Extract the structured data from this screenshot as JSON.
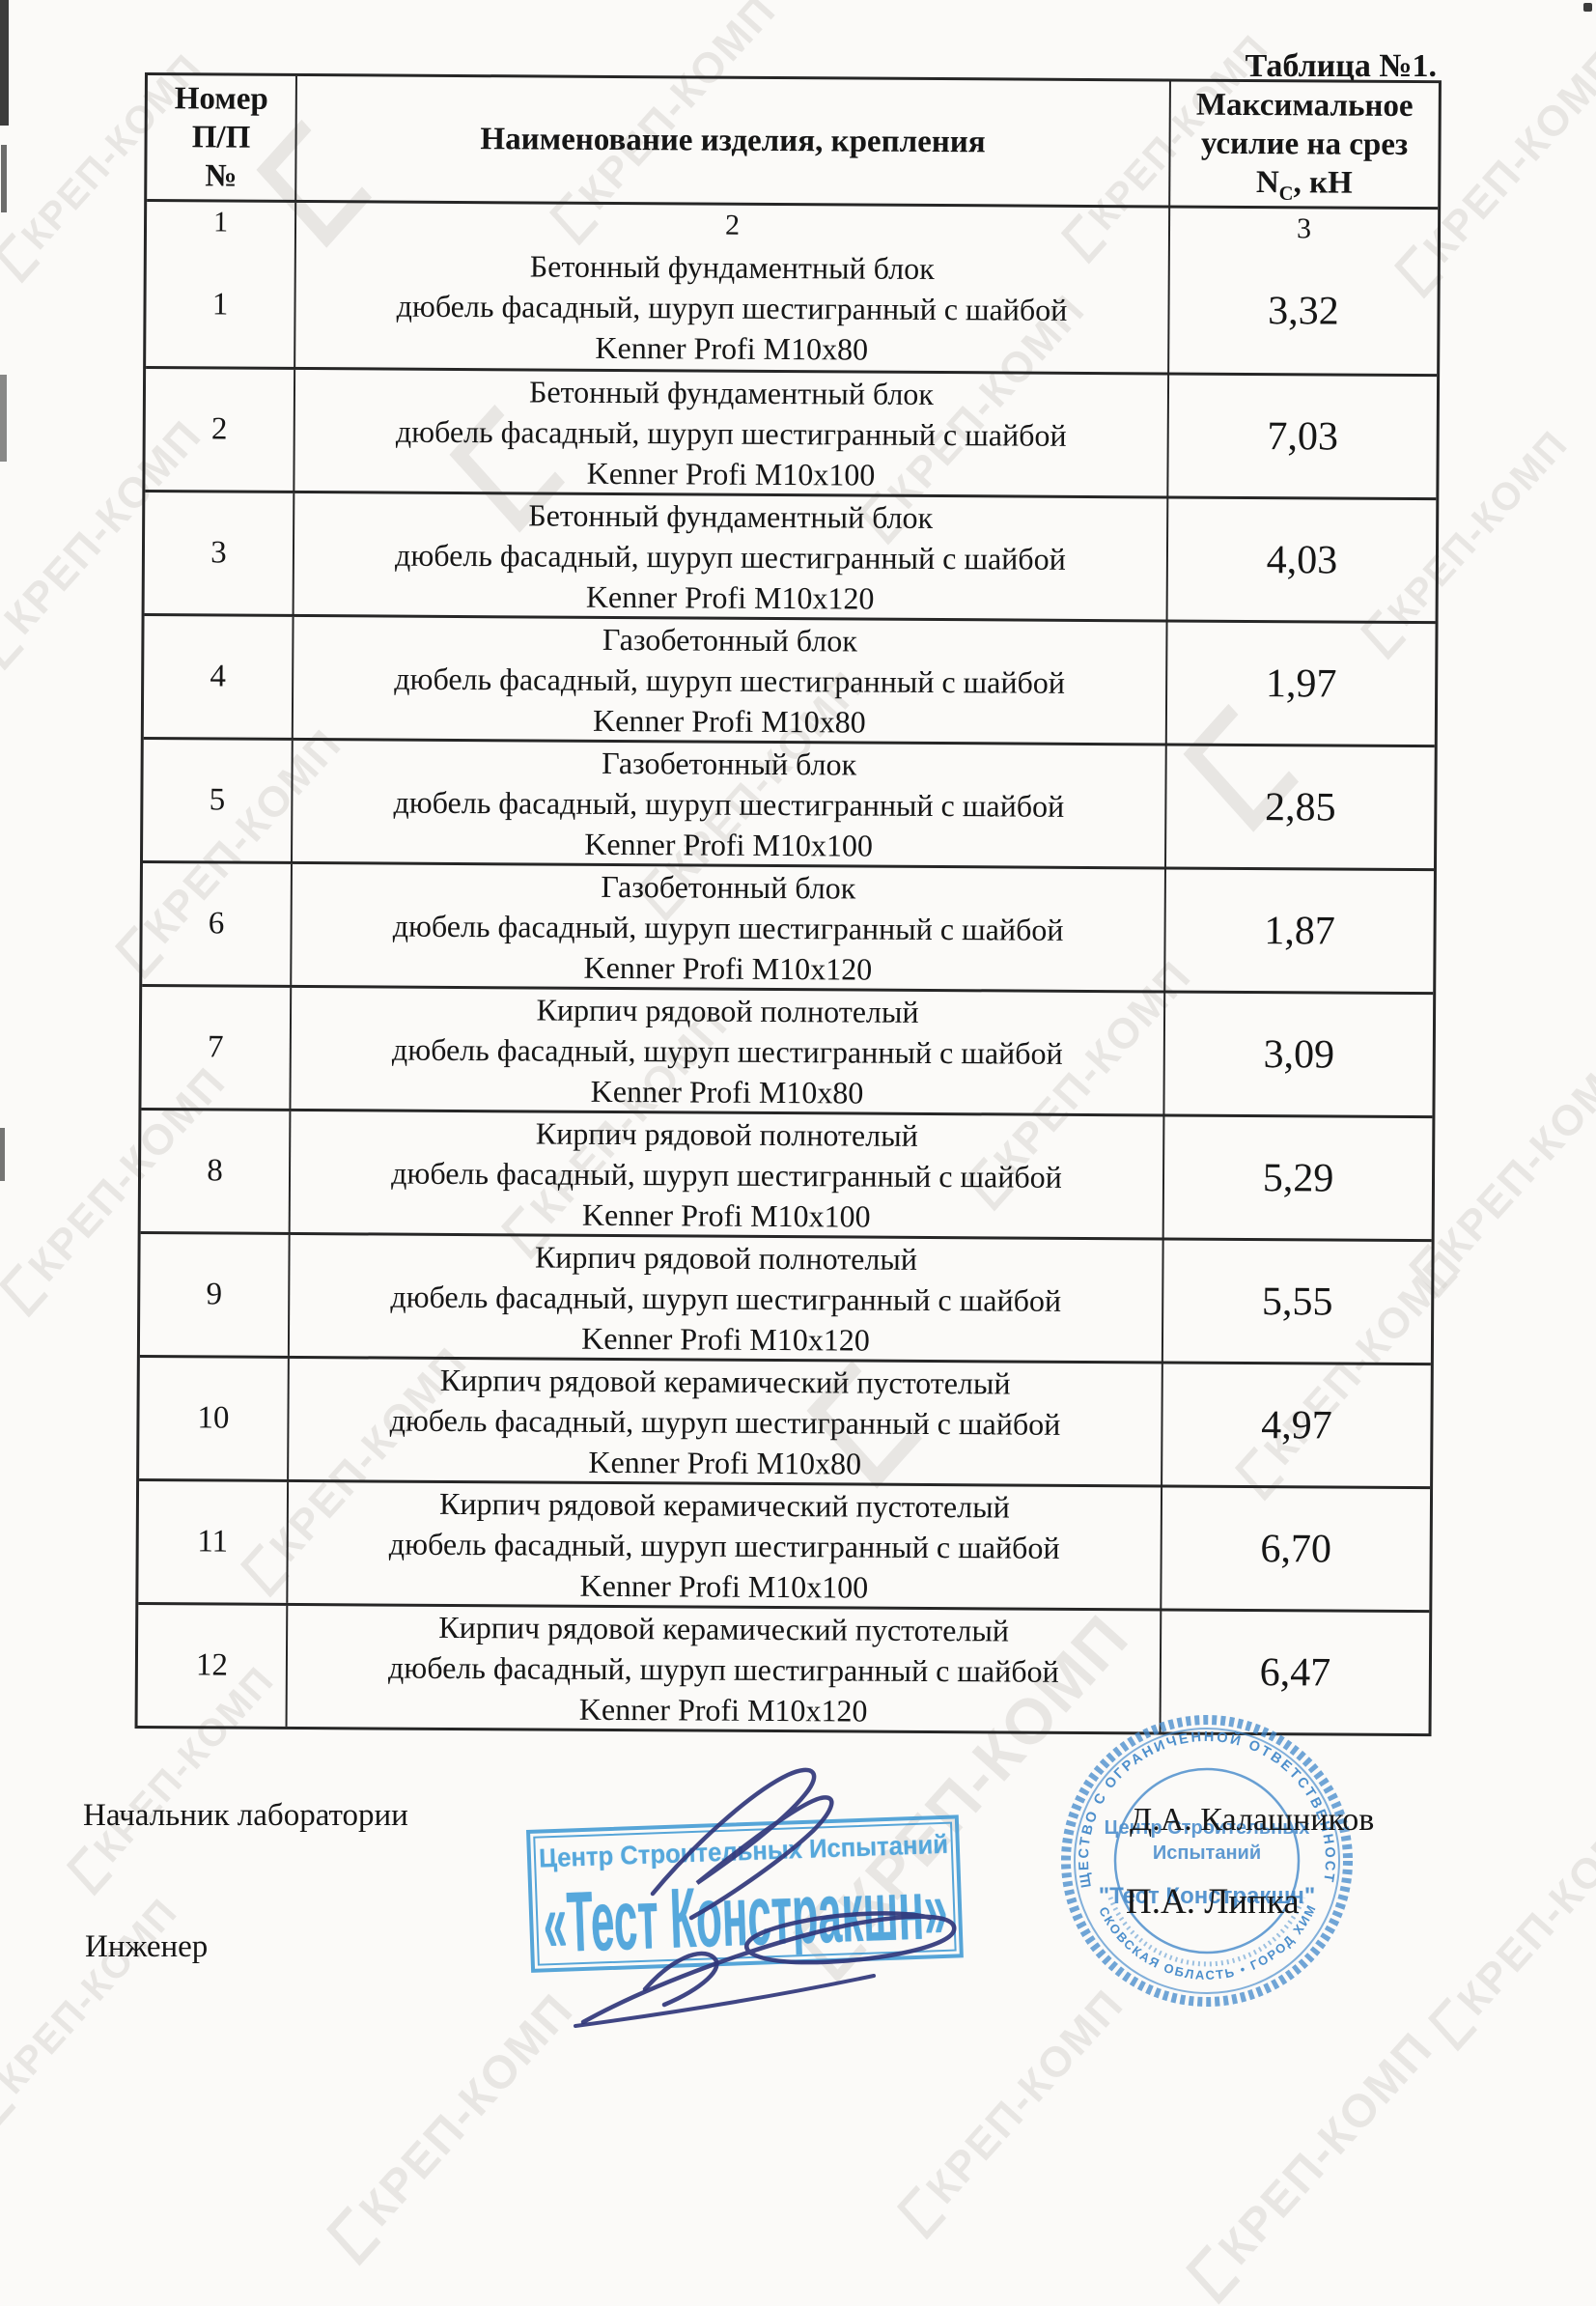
{
  "title": "Таблица №1.",
  "table": {
    "header": {
      "col1_lines": [
        "Номер",
        "П/П",
        "№"
      ],
      "col2": "Наименование изделия, крепления",
      "col3_line1": "Максимальное",
      "col3_line2": "усилие на срез",
      "col3_n": "N",
      "col3_sub": "С",
      "col3_unit": ", кН"
    },
    "numbering": {
      "c1": "1",
      "c2": "2",
      "c3": "3"
    },
    "rows": [
      {
        "num": "1",
        "material": "Бетонный фундаментный блок",
        "fastener": "дюбель фасадный, шуруп шестигранный с шайбой",
        "product": "Kenner Profi M10x80",
        "value": "3,32"
      },
      {
        "num": "2",
        "material": "Бетонный фундаментный блок",
        "fastener": "дюбель фасадный, шуруп шестигранный с шайбой",
        "product": "Kenner Profi M10x100",
        "value": "7,03"
      },
      {
        "num": "3",
        "material": "Бетонный фундаментный блок",
        "fastener": "дюбель фасадный, шуруп шестигранный с шайбой",
        "product": "Kenner Profi M10x120",
        "value": "4,03"
      },
      {
        "num": "4",
        "material": "Газобетонный блок",
        "fastener": "дюбель фасадный, шуруп шестигранный с шайбой",
        "product": "Kenner Profi M10x80",
        "value": "1,97"
      },
      {
        "num": "5",
        "material": "Газобетонный блок",
        "fastener": "дюбель фасадный, шуруп шестигранный с шайбой",
        "product": "Kenner Profi M10x100",
        "value": "2,85"
      },
      {
        "num": "6",
        "material": "Газобетонный блок",
        "fastener": "дюбель фасадный, шуруп шестигранный с шайбой",
        "product": "Kenner Profi M10x120",
        "value": "1,87"
      },
      {
        "num": "7",
        "material": "Кирпич рядовой полнотелый",
        "fastener": "дюбель фасадный, шуруп шестигранный с шайбой",
        "product": "Kenner Profi M10x80",
        "value": "3,09"
      },
      {
        "num": "8",
        "material": "Кирпич рядовой полнотелый",
        "fastener": "дюбель фасадный, шуруп шестигранный с шайбой",
        "product": "Kenner Profi M10x100",
        "value": "5,29"
      },
      {
        "num": "9",
        "material": "Кирпич рядовой полнотелый",
        "fastener": "дюбель фасадный, шуруп шестигранный с шайбой",
        "product": "Kenner Profi M10x120",
        "value": "5,55"
      },
      {
        "num": "10",
        "material": "Кирпич рядовой керамический пустотелый",
        "fastener": "дюбель фасадный, шуруп шестигранный с шайбой",
        "product": "Kenner Profi M10x80",
        "value": "4,97"
      },
      {
        "num": "11",
        "material": "Кирпич рядовой керамический пустотелый",
        "fastener": "дюбель фасадный, шуруп шестигранный с шайбой",
        "product": "Kenner Profi M10x100",
        "value": "6,70"
      },
      {
        "num": "12",
        "material": "Кирпич рядовой керамический пустотелый",
        "fastener": "дюбель фасадный, шуруп шестигранный с шайбой",
        "product": "Kenner Profi M10x120",
        "value": "6,47"
      }
    ]
  },
  "signature_block": {
    "role1": "Начальник лаборатории",
    "role2": "Инженер",
    "name1": "Д.А.  Калашников",
    "name2": "П.А.  Липка"
  },
  "rect_stamp": {
    "line1": "Центр Строительных Испытаний",
    "line2": "«Тест Констракшн»"
  },
  "round_stamp": {
    "arc_top": "ОБЩЕСТВО С ОГРАНИЧЕННОЙ ОТВЕТСТВЕННОСТЬЮ",
    "arc_bottom": "МОСКОВСКАЯ ОБЛАСТЬ  •  ГОРОД ХИМКИ",
    "inner1": "Центр Строительных",
    "inner2": "Испытаний",
    "inner3": "\"Тест Констракшн\""
  },
  "watermark_text": "КРЕП-КОМП",
  "colors": {
    "stamp_blue": "#4a9fd6",
    "round_stamp_blue": "#3f86c9",
    "signature_ink": "#30367a",
    "watermark_gray": "#cfccc8",
    "table_line": "#262626"
  }
}
